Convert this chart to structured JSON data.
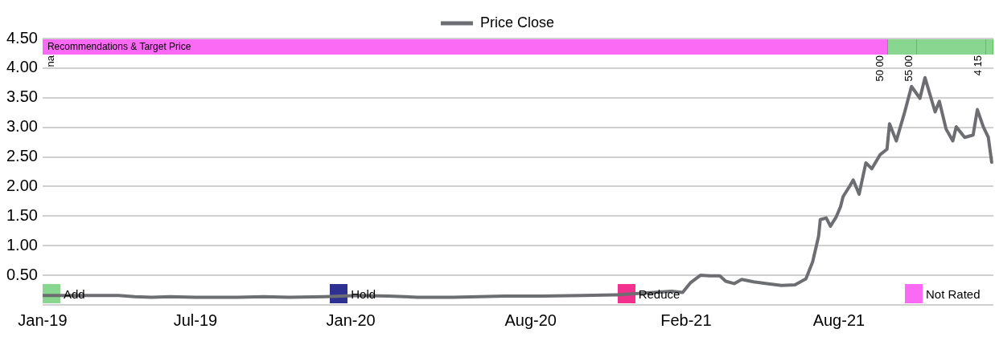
{
  "chart_data": {
    "type": "line",
    "legend": "top",
    "grid": "y",
    "marker": "none",
    "line_style": "solid",
    "xlim": [
      "2019-01-01",
      "2022-01-31"
    ],
    "xticks": [
      {
        "value": "2019-01-01",
        "label": "Jan-19"
      },
      {
        "value": "2019-07-01",
        "label": "Jul-19"
      },
      {
        "value": "2020-01-01",
        "label": "Jan-20"
      },
      {
        "value": "2020-08-01",
        "label": "Aug-20"
      },
      {
        "value": "2021-02-01",
        "label": "Feb-21"
      },
      {
        "value": "2021-08-01",
        "label": "Aug-21"
      }
    ],
    "ylim": [
      0,
      4.5
    ],
    "yticks": [
      {
        "value": 0,
        "label": null
      },
      {
        "value": 0.5,
        "label": "0.50"
      },
      {
        "value": 1,
        "label": "1.00"
      },
      {
        "value": 1.5,
        "label": "1.50"
      },
      {
        "value": 2,
        "label": "2.00"
      },
      {
        "value": 2.5,
        "label": "2.50"
      },
      {
        "value": 3,
        "label": "3.00"
      },
      {
        "value": 3.5,
        "label": "3.50"
      },
      {
        "value": 4,
        "label": "4.00"
      },
      {
        "value": 4.5,
        "label": "4.50"
      }
    ],
    "series": [
      {
        "name": "Price Close",
        "color": "#6d6e71",
        "x": [
          "2019-01-01",
          "2019-02-15",
          "2019-04-01",
          "2019-04-20",
          "2019-05-10",
          "2019-06-01",
          "2019-07-01",
          "2019-08-20",
          "2019-09-20",
          "2019-10-20",
          "2019-12-01",
          "2020-01-10",
          "2020-02-15",
          "2020-03-20",
          "2020-05-01",
          "2020-07-01",
          "2020-08-15",
          "2020-10-01",
          "2020-11-11",
          "2021-01-15",
          "2021-01-28",
          "2021-02-06",
          "2021-02-18",
          "2021-03-01",
          "2021-03-13",
          "2021-03-20",
          "2021-03-30",
          "2021-04-08",
          "2021-04-22",
          "2021-05-08",
          "2021-05-25",
          "2021-06-10",
          "2021-06-23",
          "2021-07-01",
          "2021-07-08",
          "2021-07-10",
          "2021-07-17",
          "2021-07-22",
          "2021-07-29",
          "2021-08-03",
          "2021-08-06",
          "2021-08-14",
          "2021-08-18",
          "2021-08-25",
          "2021-09-02",
          "2021-09-09",
          "2021-09-19",
          "2021-09-27",
          "2021-09-30",
          "2021-10-08",
          "2021-10-18",
          "2021-10-26",
          "2021-11-05",
          "2021-11-11",
          "2021-11-23",
          "2021-11-28",
          "2021-12-06",
          "2021-12-14",
          "2021-12-18",
          "2021-12-28",
          "2022-01-07",
          "2022-01-12",
          "2022-01-19",
          "2022-01-25",
          "2022-01-29"
        ],
        "values": [
          0.16,
          0.16,
          0.16,
          0.14,
          0.13,
          0.14,
          0.13,
          0.13,
          0.14,
          0.13,
          0.14,
          0.16,
          0.15,
          0.13,
          0.13,
          0.15,
          0.15,
          0.16,
          0.17,
          0.23,
          0.21,
          0.37,
          0.5,
          0.49,
          0.49,
          0.4,
          0.36,
          0.43,
          0.39,
          0.36,
          0.33,
          0.34,
          0.44,
          0.73,
          1.16,
          1.44,
          1.47,
          1.33,
          1.49,
          1.66,
          1.83,
          2.01,
          2.11,
          1.87,
          2.4,
          2.3,
          2.54,
          2.63,
          3.06,
          2.77,
          3.26,
          3.69,
          3.49,
          3.84,
          3.26,
          3.44,
          2.97,
          2.77,
          3.01,
          2.83,
          2.87,
          3.3,
          3.01,
          2.83,
          2.41
        ]
      },
      {
        "name": "Add",
        "color": "#88d68f",
        "type": "bar"
      },
      {
        "name": "Hold",
        "color": "#2e3192",
        "type": "bar"
      },
      {
        "name": "Reduce",
        "color": "#f2308e",
        "type": "bar"
      },
      {
        "name": "Not Rated",
        "color": "#fb6af5",
        "type": "bar"
      }
    ],
    "annotations": [
      "Recommendations & Target Price",
      "na",
      "50.00",
      "55.00",
      "4.15"
    ]
  }
}
